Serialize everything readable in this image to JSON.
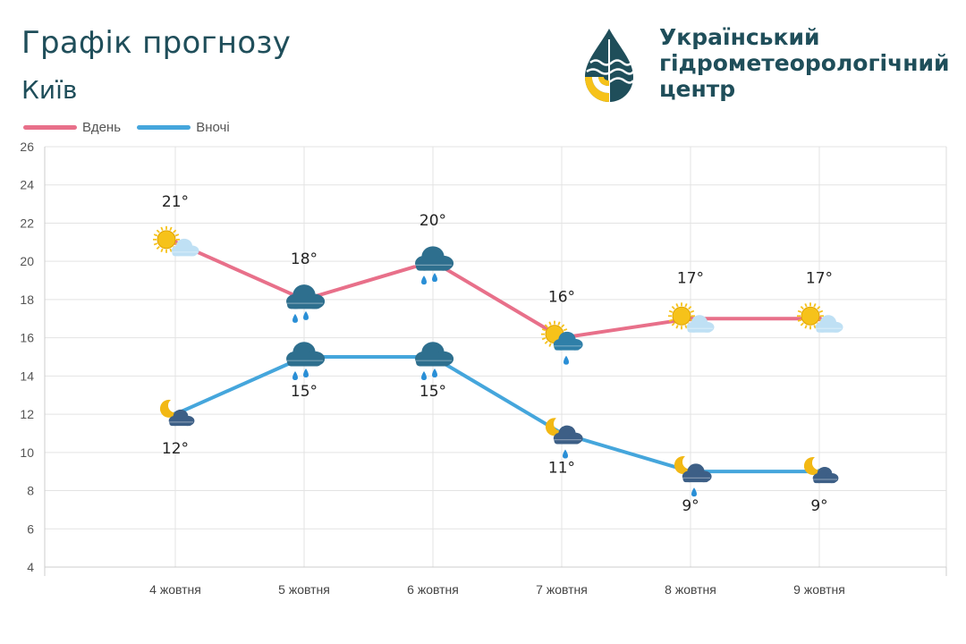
{
  "header": {
    "title": "Графік прогнозу",
    "city": "Київ",
    "org_line1": "Український",
    "org_line2": "гідрометеорологічний",
    "org_line3": "центр",
    "logo_icon": "hydromet-drop-logo-icon"
  },
  "legend": {
    "day_label": "Вдень",
    "night_label": "Вночі"
  },
  "colors": {
    "day": "#e8708a",
    "night": "#45a6dc",
    "text": "#1f4e5a",
    "grid": "#e3e3e3",
    "sun": "#f6c21a",
    "cloud_light": "#bfe0f4",
    "cloud_dark": "#2e6f8e",
    "rain": "#2a8fd6",
    "moon": "#f2b814"
  },
  "chart_data": {
    "type": "line",
    "categories": [
      "4 жовтня",
      "5 жовтня",
      "6 жовтня",
      "7 жовтня",
      "8 жовтня",
      "9 жовтня"
    ],
    "series": [
      {
        "name": "Вдень",
        "values": [
          21,
          18,
          20,
          16,
          17,
          17
        ],
        "labels": [
          "21°",
          "18°",
          "20°",
          "16°",
          "17°",
          "17°"
        ],
        "icons": [
          "sun-cloud-icon",
          "cloud-rain-icon",
          "cloud-rain-icon",
          "sun-cloud-rain-icon",
          "sun-cloud-icon",
          "sun-cloud-icon"
        ]
      },
      {
        "name": "Вночі",
        "values": [
          12,
          15,
          15,
          11,
          9,
          9
        ],
        "labels": [
          "12°",
          "15°",
          "15°",
          "11°",
          "9°",
          "9°"
        ],
        "icons": [
          "moon-cloud-icon",
          "cloud-rain-icon",
          "cloud-rain-icon",
          "moon-cloud-rain-icon",
          "moon-cloud-rain-icon",
          "moon-cloud-icon"
        ]
      }
    ],
    "yticks": [
      "4",
      "6",
      "8",
      "10",
      "12",
      "14",
      "16",
      "18",
      "20",
      "22",
      "24",
      "26"
    ],
    "ylim": [
      4,
      26
    ],
    "grid": true,
    "legend_position": "top-left"
  }
}
